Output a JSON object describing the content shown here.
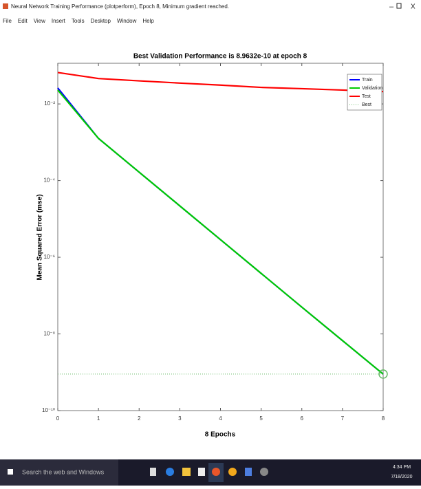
{
  "window": {
    "title": "Neural Network Training Performance (plotperform), Epoch 8, Minimum gradient reached.",
    "menu": [
      "File",
      "Edit",
      "View",
      "Insert",
      "Tools",
      "Desktop",
      "Window",
      "Help"
    ]
  },
  "chart_data": {
    "type": "line",
    "title": "Best Validation Performance is 8.9632e-10 at epoch 8",
    "x_label": "8 Epochs",
    "y_label": "Mean Squared Error  (mse)",
    "y_scale": "log",
    "x": [
      0,
      1,
      2,
      3,
      4,
      5,
      6,
      7,
      8
    ],
    "series": [
      {
        "name": "Train",
        "color": "#0000ff",
        "values": [
          0.026,
          0.00126,
          0.000166,
          2.19e-05,
          2.88e-06,
          3.8e-07,
          5e-08,
          6.7e-09,
          8.96e-10
        ]
      },
      {
        "name": "Validation",
        "color": "#00cc00",
        "values": [
          0.023,
          0.00126,
          0.000166,
          2.19e-05,
          2.88e-06,
          3.8e-07,
          5e-08,
          6.7e-09,
          8.9632e-10
        ]
      },
      {
        "name": "Test",
        "color": "#ff0000",
        "values": [
          0.066,
          0.046,
          0.04,
          0.035,
          0.031,
          0.027,
          0.025,
          0.023,
          0.021
        ]
      }
    ],
    "best": {
      "name": "Best",
      "color": "#66bb66",
      "epoch": 8,
      "value": 8.9632e-10
    },
    "xlim": [
      0,
      8
    ],
    "xticks": [
      0,
      1,
      2,
      3,
      4,
      5,
      6,
      7,
      8
    ],
    "ylim": [
      1e-10,
      0.115
    ],
    "yticks": [
      {
        "value": 1e-10,
        "label": "10⁻¹⁰"
      },
      {
        "value": 1e-08,
        "label": "10⁻⁸"
      },
      {
        "value": 1e-06,
        "label": "10⁻⁶"
      },
      {
        "value": 0.0001,
        "label": "10⁻⁴"
      },
      {
        "value": 0.01,
        "label": "10⁻²"
      }
    ],
    "legend": "upper right"
  },
  "taskbar": {
    "search": "Search the web and Windows",
    "time": "4:34 PM",
    "date": "7/18/2020"
  }
}
